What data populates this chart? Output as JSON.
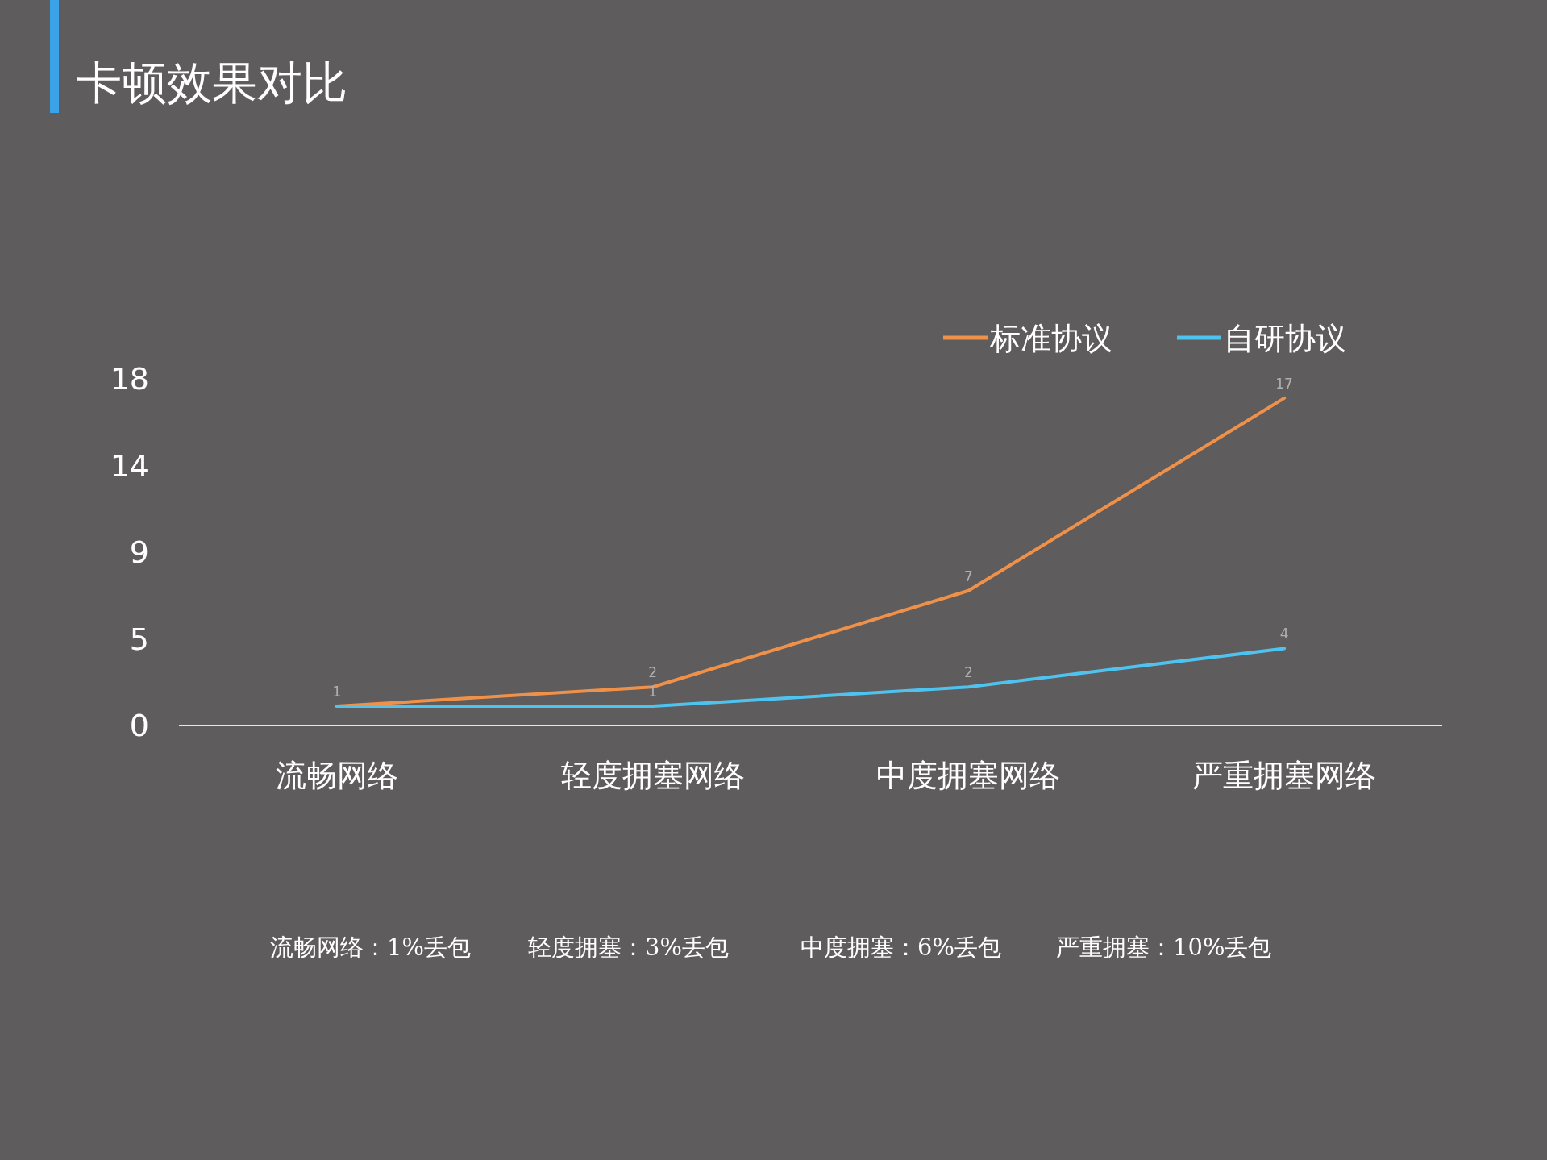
{
  "chart_data": {
    "type": "line",
    "title": "卡顿效果对比",
    "categories": [
      "流畅网络",
      "轻度拥塞网络",
      "中度拥塞网络",
      "严重拥塞网络"
    ],
    "series": [
      {
        "name": "标准协议",
        "color": "#f0914a",
        "values": [
          1,
          2,
          7,
          17
        ],
        "value_labels": [
          "1",
          "2",
          "7",
          "17"
        ]
      },
      {
        "name": "自研协议",
        "color": "#4fc3f0",
        "values": [
          1,
          1,
          2,
          4
        ],
        "value_labels": [
          null,
          "1",
          "2",
          "4"
        ]
      }
    ],
    "ylim": [
      0,
      18
    ],
    "yticks": [
      0,
      {
        "value": 4.5,
        "label": "5"
      },
      9,
      {
        "value": 13.5,
        "label": "14"
      },
      18
    ],
    "legend": "top right",
    "annotations": [
      "流畅网络：1%丢包",
      "轻度拥塞：3%丢包",
      "中度拥塞：6%丢包",
      "严重拥塞：10%丢包"
    ]
  }
}
